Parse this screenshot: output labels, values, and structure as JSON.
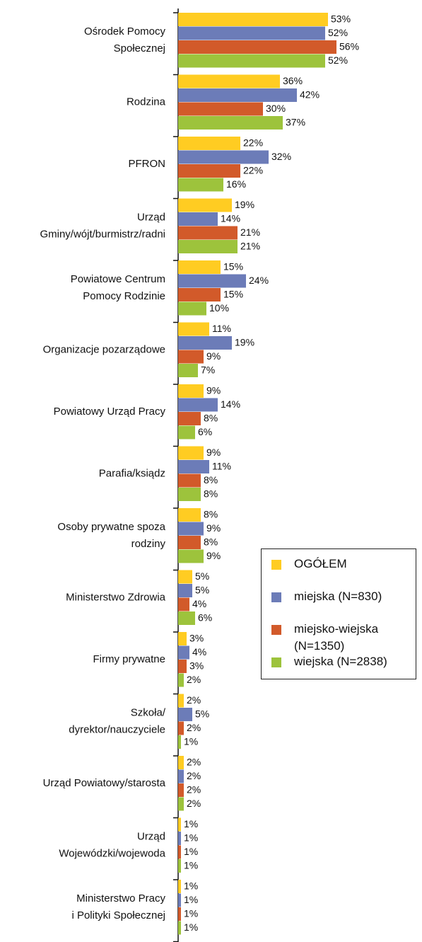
{
  "chart_data": {
    "type": "bar",
    "orientation": "horizontal",
    "categories": [
      [
        "Ośrodek Pomocy",
        "Społecznej"
      ],
      [
        "Rodzina"
      ],
      [
        "PFRON"
      ],
      [
        "Urząd",
        "Gminy/wójt/burmistrz/radni"
      ],
      [
        "Powiatowe Centrum",
        "Pomocy Rodzinie"
      ],
      [
        "Organizacje pozarządowe"
      ],
      [
        "Powiatowy Urząd Pracy"
      ],
      [
        "Parafia/ksiądz"
      ],
      [
        "Osoby prywatne spoza",
        "rodziny"
      ],
      [
        "Ministerstwo Zdrowia"
      ],
      [
        "Firmy prywatne"
      ],
      [
        "Szkoła/",
        "dyrektor/nauczyciele"
      ],
      [
        "Urząd Powiatowy/starosta"
      ],
      [
        "Urząd",
        "Wojewódzki/wojewoda"
      ],
      [
        "Ministerstwo Pracy",
        "i Polityki Społecznej"
      ]
    ],
    "series": [
      {
        "name": "OGÓŁEM",
        "color": "#ffcc22",
        "values": [
          53,
          36,
          22,
          19,
          15,
          11,
          9,
          9,
          8,
          5,
          3,
          2,
          2,
          1,
          1
        ],
        "value_labels": [
          "53%",
          "36%",
          "22%",
          "19%",
          "15%",
          "11%",
          "9%",
          "9%",
          "8%",
          "5%",
          "3%",
          "2%",
          "2%",
          "1%",
          "1%"
        ]
      },
      {
        "name": "miejska (N=830)",
        "color": "#6c7cb8",
        "values": [
          52,
          42,
          32,
          14,
          24,
          19,
          14,
          11,
          9,
          5,
          4,
          5,
          2,
          1,
          1
        ],
        "value_labels": [
          "52%",
          "42%",
          "32%",
          "14%",
          "24%",
          "19%",
          "14%",
          "11%",
          "9%",
          "5%",
          "4%",
          "5%",
          "2%",
          "1%",
          "1%"
        ]
      },
      {
        "name": "miejsko-wiejska (N=1350)",
        "color": "#d25a2a",
        "values": [
          56,
          30,
          22,
          21,
          15,
          9,
          8,
          8,
          8,
          4,
          3,
          2,
          2,
          1,
          1
        ],
        "value_labels": [
          "56%",
          "30%",
          "22%",
          "21%",
          "15%",
          "9%",
          "8%",
          "8%",
          "8%",
          "4%",
          "3%",
          "2%",
          "2%",
          "1%",
          "1%"
        ]
      },
      {
        "name": "wiejska (N=2838)",
        "color": "#9dc33c",
        "values": [
          52,
          37,
          16,
          21,
          10,
          7,
          6,
          8,
          9,
          6,
          2,
          1,
          2,
          1,
          1
        ],
        "value_labels": [
          "52%",
          "37%",
          "16%",
          "21%",
          "10%",
          "7%",
          "6%",
          "8%",
          "9%",
          "6%",
          "2%",
          "1%",
          "2%",
          "1%",
          "1%"
        ]
      }
    ]
  }
}
